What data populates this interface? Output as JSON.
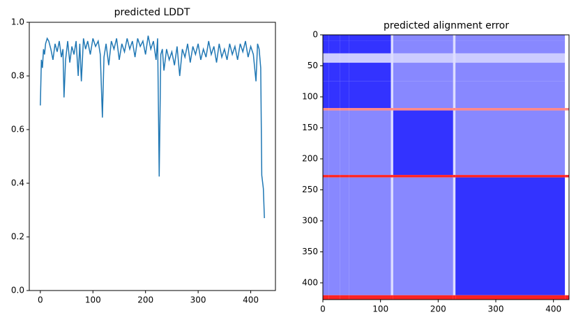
{
  "chart_data": [
    {
      "type": "line",
      "title": "predicted LDDT",
      "color": "#1f77b4",
      "x": [
        0,
        2,
        4,
        6,
        8,
        10,
        13,
        16,
        20,
        24,
        28,
        32,
        36,
        40,
        43,
        45,
        48,
        52,
        56,
        60,
        64,
        68,
        72,
        75,
        78,
        82,
        86,
        90,
        95,
        100,
        105,
        110,
        114,
        118,
        121,
        125,
        130,
        135,
        140,
        145,
        150,
        155,
        160,
        165,
        170,
        175,
        180,
        185,
        190,
        195,
        200,
        205,
        210,
        215,
        220,
        223,
        226,
        229,
        232,
        235,
        240,
        245,
        250,
        255,
        260,
        265,
        270,
        275,
        280,
        285,
        290,
        295,
        300,
        305,
        310,
        315,
        320,
        325,
        330,
        335,
        340,
        345,
        350,
        355,
        360,
        365,
        370,
        375,
        380,
        385,
        390,
        395,
        400,
        405,
        410,
        413,
        416,
        419,
        421,
        424,
        426
      ],
      "values": [
        0.69,
        0.86,
        0.83,
        0.9,
        0.88,
        0.92,
        0.94,
        0.93,
        0.9,
        0.86,
        0.92,
        0.89,
        0.93,
        0.87,
        0.9,
        0.72,
        0.86,
        0.93,
        0.85,
        0.91,
        0.88,
        0.93,
        0.8,
        0.92,
        0.78,
        0.94,
        0.9,
        0.93,
        0.88,
        0.94,
        0.91,
        0.93,
        0.88,
        0.645,
        0.87,
        0.92,
        0.84,
        0.93,
        0.9,
        0.94,
        0.86,
        0.92,
        0.89,
        0.94,
        0.9,
        0.93,
        0.87,
        0.94,
        0.91,
        0.93,
        0.88,
        0.95,
        0.9,
        0.93,
        0.86,
        0.94,
        0.425,
        0.88,
        0.9,
        0.82,
        0.9,
        0.86,
        0.89,
        0.84,
        0.91,
        0.8,
        0.9,
        0.87,
        0.92,
        0.85,
        0.91,
        0.88,
        0.92,
        0.86,
        0.9,
        0.87,
        0.93,
        0.88,
        0.91,
        0.85,
        0.92,
        0.87,
        0.9,
        0.86,
        0.92,
        0.88,
        0.91,
        0.86,
        0.92,
        0.89,
        0.93,
        0.87,
        0.91,
        0.88,
        0.78,
        0.92,
        0.9,
        0.83,
        0.43,
        0.38,
        0.27
      ],
      "xlim": [
        -21,
        447
      ],
      "xticks": [
        0,
        100,
        200,
        300,
        400
      ],
      "ylim": [
        0,
        1
      ],
      "yticks": [
        {
          "value": 0,
          "label": "0.0"
        },
        {
          "value": 0.2,
          "label": "0.2"
        },
        {
          "value": 0.4,
          "label": "0.4"
        },
        {
          "value": 0.6,
          "label": "0.6"
        },
        {
          "value": 0.8,
          "label": "0.8"
        },
        {
          "value": 1,
          "label": "1.0"
        }
      ]
    },
    {
      "type": "heatmap",
      "title": "predicted alignment error",
      "colormap": "bwr",
      "vmin": 0,
      "vmax": 30,
      "x_edges": [
        0,
        10,
        30,
        45,
        75,
        118,
        122,
        226,
        230,
        420,
        427
      ],
      "y_edges": [
        0,
        10,
        30,
        45,
        75,
        118,
        122,
        226,
        230,
        420,
        427
      ],
      "values": [
        [
          3,
          3,
          3,
          3,
          3,
          13,
          8,
          13,
          8,
          15
        ],
        [
          3,
          3,
          3,
          3,
          3,
          13,
          8,
          13,
          8,
          15
        ],
        [
          12,
          12,
          12,
          12,
          12,
          13,
          12,
          13,
          12,
          15
        ],
        [
          3,
          3,
          3,
          3,
          3,
          13,
          8,
          13,
          8,
          15
        ],
        [
          3,
          3,
          3,
          3,
          3,
          13,
          8,
          13,
          8,
          15
        ],
        [
          22,
          22,
          22,
          22,
          22,
          22,
          22,
          22,
          22,
          22
        ],
        [
          8,
          8,
          8,
          8,
          8,
          13,
          3,
          13,
          8,
          15
        ],
        [
          28,
          28,
          28,
          28,
          28,
          28,
          28,
          28,
          28,
          28
        ],
        [
          8,
          8,
          8,
          8,
          8,
          13,
          8,
          13,
          3,
          15
        ],
        [
          28,
          28,
          28,
          28,
          28,
          28,
          28,
          28,
          28,
          28
        ]
      ],
      "xlim": [
        0,
        427
      ],
      "xticks": [
        0,
        100,
        200,
        300,
        400
      ],
      "ylim": [
        427,
        0
      ],
      "yticks": [
        0,
        50,
        100,
        150,
        200,
        250,
        300,
        350,
        400
      ]
    }
  ]
}
